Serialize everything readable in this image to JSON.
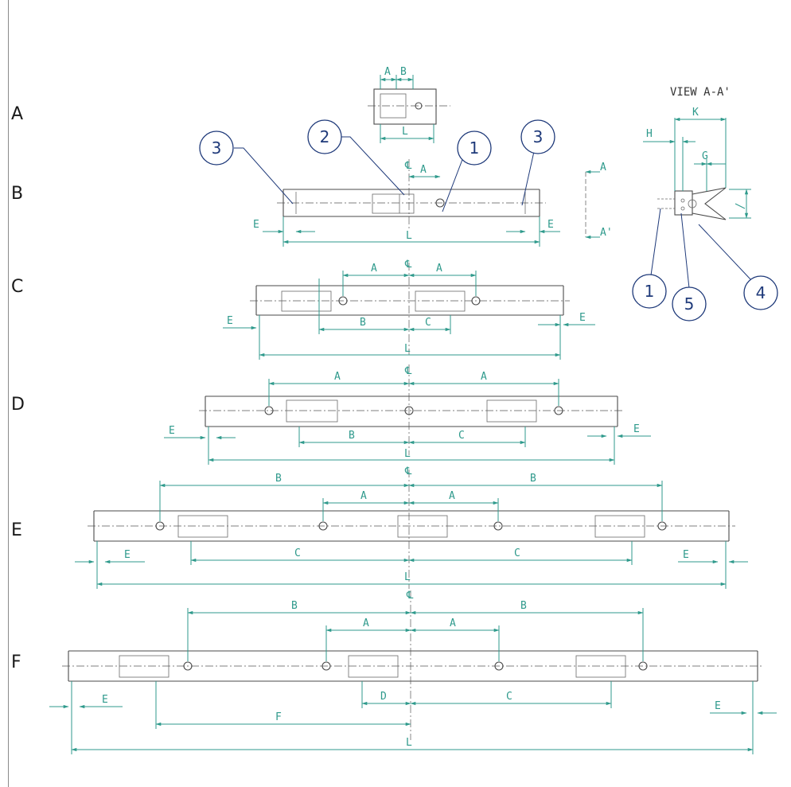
{
  "row_labels": [
    "A",
    "B",
    "C",
    "D",
    "E",
    "F"
  ],
  "view_title": "VIEW A-A'",
  "section_marks": [
    "A",
    "A'"
  ],
  "centerline_symbol": "℄",
  "callouts": {
    "one": "1",
    "two": "2",
    "three": "3",
    "four": "4",
    "five": "5"
  },
  "dim": {
    "A": "A",
    "B": "B",
    "C": "C",
    "D": "D",
    "E": "E",
    "F": "F",
    "G": "G",
    "H": "H",
    "K": "K",
    "L": "L"
  },
  "colors": {
    "dimension": "#2f9a8c",
    "callout": "#1f3a7a",
    "part": "#4a4a4a"
  }
}
